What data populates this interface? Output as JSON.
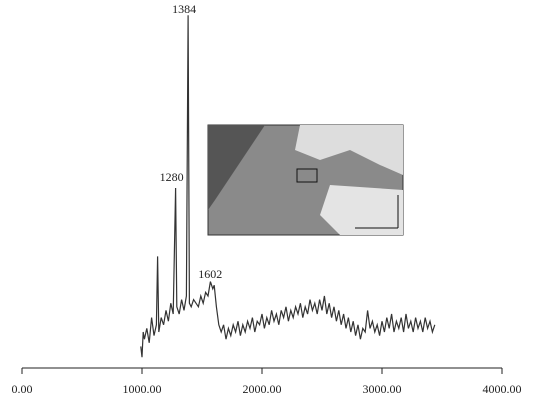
{
  "chart_data": {
    "type": "line",
    "color": "#333333",
    "xlim": [
      0,
      4000
    ],
    "xticks": [
      {
        "value": 0,
        "label": "0.00"
      },
      {
        "value": 1000,
        "label": "1000.00"
      },
      {
        "value": 2000,
        "label": "2000.00"
      },
      {
        "value": 3000,
        "label": "3000.00"
      },
      {
        "value": 4000,
        "label": "4000.00"
      }
    ],
    "ylim": [
      0,
      100
    ],
    "peak_labels": [
      1384,
      1280,
      1602
    ],
    "x": [
      990,
      1000,
      1010,
      1020,
      1040,
      1060,
      1080,
      1100,
      1120,
      1130,
      1140,
      1160,
      1180,
      1200,
      1220,
      1240,
      1260,
      1280,
      1290,
      1310,
      1330,
      1350,
      1370,
      1384,
      1395,
      1410,
      1430,
      1450,
      1470,
      1490,
      1510,
      1530,
      1550,
      1570,
      1590,
      1602,
      1620,
      1640,
      1660,
      1680,
      1700,
      1720,
      1740,
      1760,
      1780,
      1800,
      1820,
      1840,
      1860,
      1880,
      1900,
      1920,
      1940,
      1960,
      1980,
      2000,
      2020,
      2040,
      2060,
      2080,
      2100,
      2120,
      2140,
      2160,
      2180,
      2200,
      2220,
      2240,
      2260,
      2280,
      2300,
      2320,
      2340,
      2360,
      2380,
      2400,
      2420,
      2440,
      2460,
      2480,
      2500,
      2520,
      2540,
      2560,
      2580,
      2600,
      2620,
      2640,
      2660,
      2680,
      2700,
      2720,
      2740,
      2760,
      2780,
      2800,
      2820,
      2840,
      2860,
      2880,
      2900,
      2920,
      2940,
      2960,
      2980,
      3000,
      3020,
      3040,
      3060,
      3080,
      3100,
      3120,
      3140,
      3160,
      3180,
      3200,
      3220,
      3240,
      3260,
      3280,
      3300,
      3320,
      3340,
      3360,
      3380,
      3400,
      3420,
      3440
    ],
    "values": [
      6,
      3,
      10,
      8,
      11,
      7,
      14,
      9,
      12,
      31,
      10,
      14,
      12,
      16,
      13,
      18,
      15,
      50,
      17,
      15,
      19,
      16,
      20,
      98,
      18,
      17,
      19,
      18,
      17,
      20,
      18,
      21,
      20,
      24,
      22,
      23,
      17,
      12,
      10,
      12,
      8,
      11,
      9,
      12,
      10,
      13,
      9,
      12,
      10,
      13,
      11,
      14,
      10,
      13,
      12,
      15,
      11,
      14,
      12,
      16,
      13,
      15,
      12,
      16,
      14,
      17,
      13,
      16,
      14,
      17,
      15,
      18,
      14,
      17,
      15,
      19,
      16,
      18,
      15,
      19,
      16,
      20,
      15,
      18,
      14,
      17,
      13,
      16,
      12,
      15,
      11,
      14,
      10,
      13,
      9,
      12,
      8,
      11,
      10,
      16,
      11,
      13,
      10,
      12,
      9,
      13,
      10,
      14,
      11,
      15,
      10,
      13,
      11,
      14,
      10,
      15,
      11,
      13,
      10,
      14,
      11,
      13,
      10,
      14,
      11,
      13,
      10,
      12
    ]
  }
}
